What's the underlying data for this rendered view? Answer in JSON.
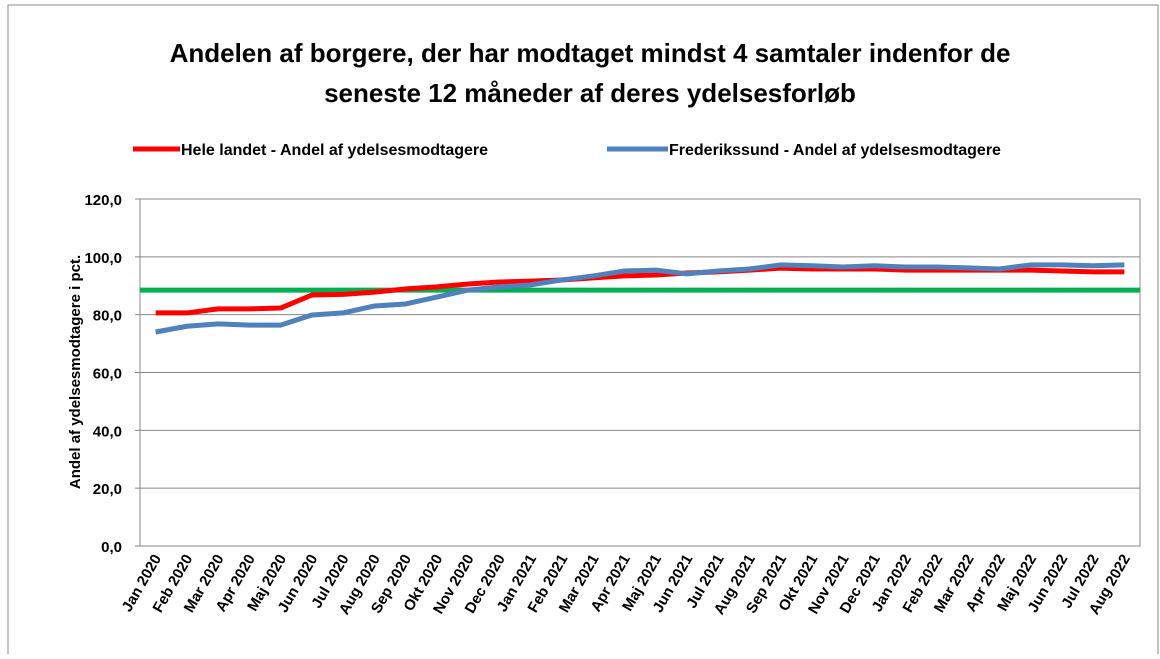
{
  "chart_data": {
    "type": "line",
    "title": [
      "Andelen af borgere, der har modtaget mindst 4 samtaler indenfor de",
      "seneste 12 måneder af deres ydelsesforløb"
    ],
    "y_label": "Andel af ydelsesmodtagere i pct.",
    "categories": [
      "Jan 2020",
      "Feb 2020",
      "Mar 2020",
      "Apr 2020",
      "Maj 2020",
      "Jun 2020",
      "Jul 2020",
      "Aug 2020",
      "Sep 2020",
      "Okt 2020",
      "Nov 2020",
      "Dec 2020",
      "Jan 2021",
      "Feb 2021",
      "Mar 2021",
      "Apr 2021",
      "Maj 2021",
      "Jun 2021",
      "Jul 2021",
      "Aug 2021",
      "Sep 2021",
      "Okt 2021",
      "Nov 2021",
      "Dec 2021",
      "Jan 2022",
      "Feb 2022",
      "Mar 2022",
      "Apr 2022",
      "Maj 2022",
      "Jun 2022",
      "Jul 2022",
      "Aug 2022"
    ],
    "series": [
      {
        "name": "Hele landet - Andel af ydelsesmodtagere",
        "color": "#ff0000",
        "values": [
          80.6,
          80.6,
          82,
          82,
          82.3,
          86.8,
          87,
          87.8,
          88.9,
          89.6,
          90.6,
          91.3,
          91.6,
          92,
          92.7,
          93.4,
          93.7,
          94.4,
          94.8,
          95.4,
          96.1,
          95.8,
          95.8,
          95.8,
          95.4,
          95.4,
          95.4,
          95.4,
          95.4,
          95.1,
          94.8,
          94.8
        ]
      },
      {
        "name": "Frederikssund - Andel af ydelsesmodtagere",
        "color": "#4f81bd",
        "values": [
          74,
          76,
          76.8,
          76.4,
          76.4,
          79.9,
          80.6,
          83,
          83.7,
          86.1,
          88.5,
          89.6,
          90.3,
          92,
          93.4,
          95.1,
          95.4,
          94.1,
          95.1,
          95.8,
          97.2,
          96.9,
          96.5,
          96.9,
          96.5,
          96.5,
          96.2,
          95.8,
          97.2,
          97.2,
          96.9,
          97.2
        ]
      }
    ],
    "reference_line": {
      "value": 88.5,
      "color": "#00b050"
    },
    "ylim": [
      0,
      120
    ],
    "yticks": [
      {
        "value": 0,
        "label": "0,0"
      },
      {
        "value": 20,
        "label": "20,0"
      },
      {
        "value": 40,
        "label": "40,0"
      },
      {
        "value": 60,
        "label": "60,0"
      },
      {
        "value": 80,
        "label": "80,0"
      },
      {
        "value": 100,
        "label": "100,0"
      },
      {
        "value": 120,
        "label": "120,0"
      }
    ],
    "grid": true
  }
}
